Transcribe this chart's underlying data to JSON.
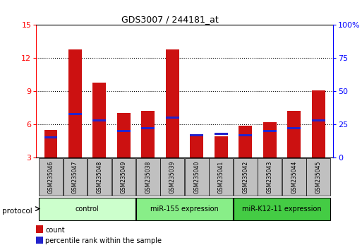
{
  "title": "GDS3007 / 244181_at",
  "samples": [
    "GSM235046",
    "GSM235047",
    "GSM235048",
    "GSM235049",
    "GSM235038",
    "GSM235039",
    "GSM235040",
    "GSM235041",
    "GSM235042",
    "GSM235043",
    "GSM235044",
    "GSM235045"
  ],
  "count_values": [
    5.5,
    12.8,
    9.8,
    7.0,
    7.2,
    12.8,
    5.1,
    4.9,
    5.9,
    6.2,
    7.2,
    9.1
  ],
  "percentile_values": [
    15,
    33,
    28,
    20,
    22,
    30,
    17,
    18,
    17,
    20,
    22,
    28
  ],
  "ylim_left": [
    3,
    15
  ],
  "ylim_right": [
    0,
    100
  ],
  "yticks_left": [
    3,
    6,
    9,
    12,
    15
  ],
  "yticks_right": [
    0,
    25,
    50,
    75,
    100
  ],
  "ytick_labels_right": [
    "0",
    "25",
    "50",
    "75",
    "100%"
  ],
  "bar_color": "#cc1111",
  "percentile_color": "#2222cc",
  "groups": [
    {
      "label": "control",
      "start": 0,
      "end": 4,
      "color": "#ccffcc"
    },
    {
      "label": "miR-155 expression",
      "start": 4,
      "end": 8,
      "color": "#88ee88"
    },
    {
      "label": "miR-K12-11 expression",
      "start": 8,
      "end": 12,
      "color": "#44cc44"
    }
  ],
  "protocol_label": "protocol",
  "legend_count": "count",
  "legend_percentile": "percentile rank within the sample",
  "bar_width": 0.55,
  "baseline": 3.0
}
